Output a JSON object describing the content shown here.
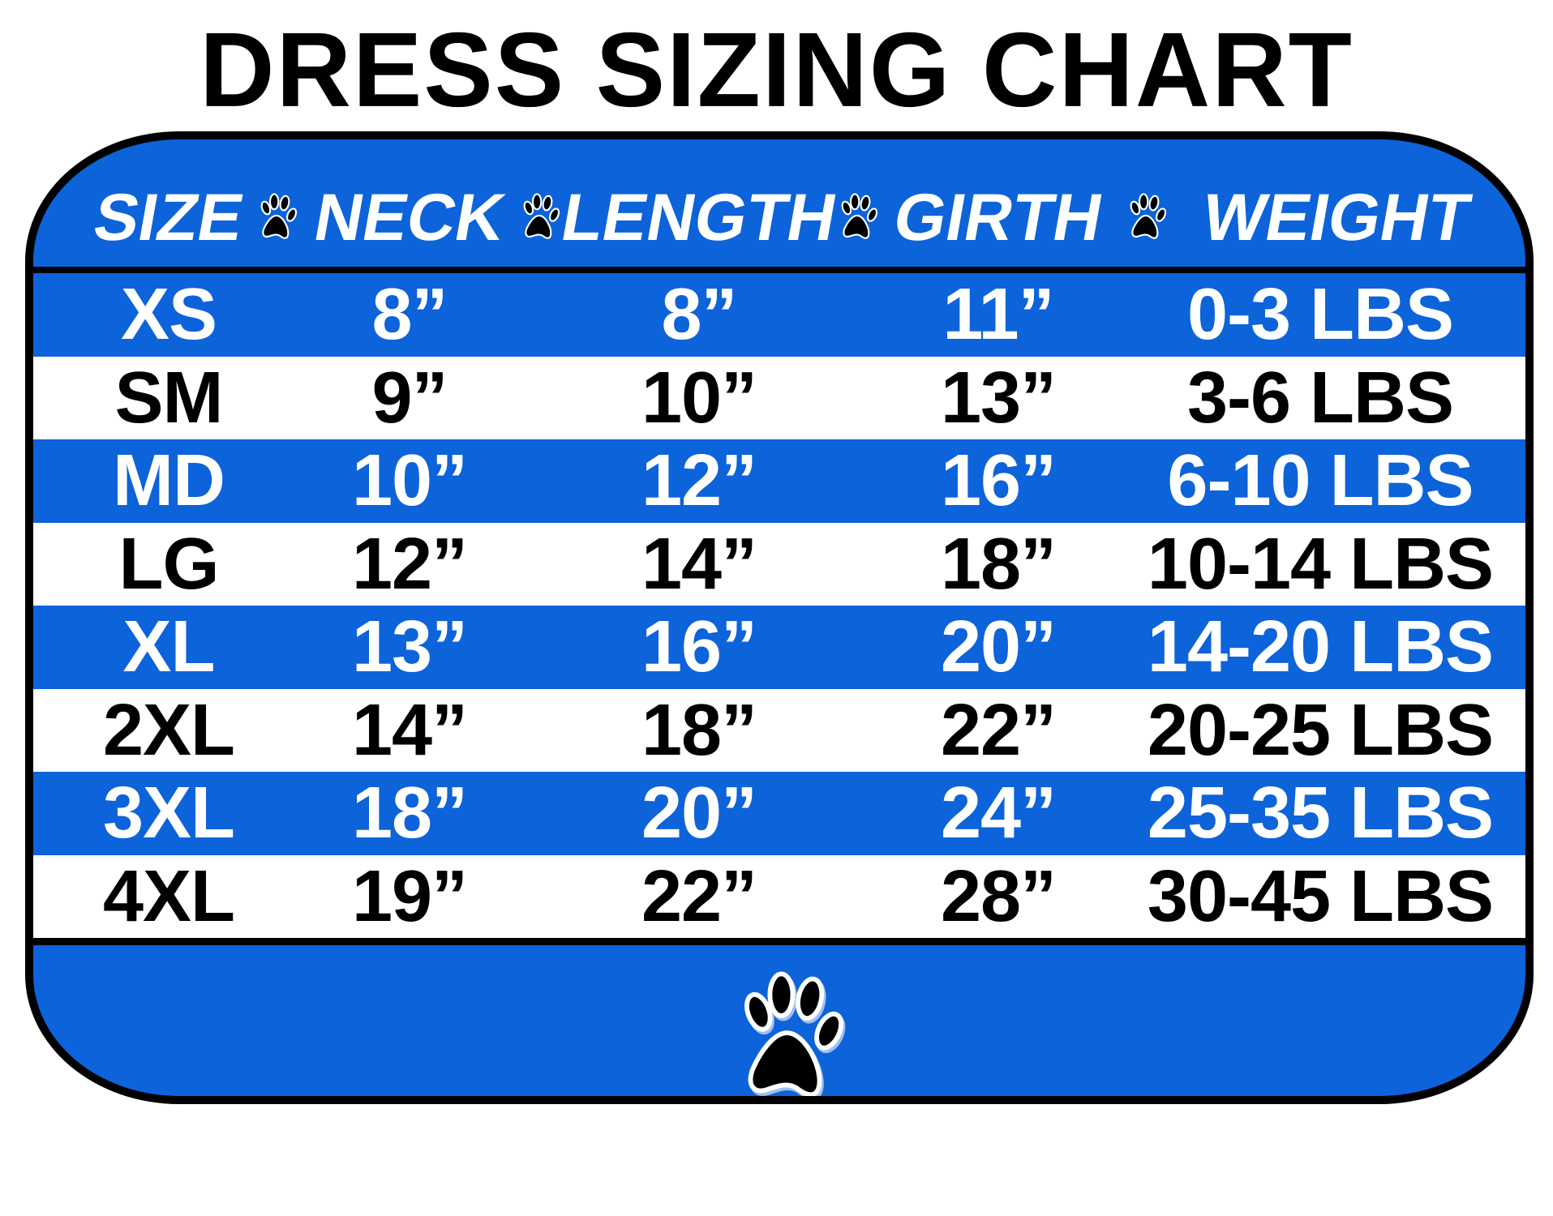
{
  "chart_data": {
    "type": "table",
    "title": "DRESS SIZING CHART",
    "columns": [
      "SIZE",
      "NECK",
      "LENGTH",
      "GIRTH",
      "WEIGHT"
    ],
    "rows": [
      [
        "XS",
        "8”",
        "8”",
        "11”",
        "0-3 LBS"
      ],
      [
        "SM",
        "9”",
        "10”",
        "13”",
        "3-6 LBS"
      ],
      [
        "MD",
        "10”",
        "12”",
        "16”",
        "6-10 LBS"
      ],
      [
        "LG",
        "12”",
        "14”",
        "18”",
        "10-14 LBS"
      ],
      [
        "XL",
        "13”",
        "16”",
        "20”",
        "14-20 LBS"
      ],
      [
        "2XL",
        "14”",
        "18”",
        "22”",
        "20-25 LBS"
      ],
      [
        "3XL",
        "18”",
        "20”",
        "24”",
        "25-35 LBS"
      ],
      [
        "4XL",
        "19”",
        "22”",
        "28”",
        "30-45 LBS"
      ]
    ],
    "row_colors": [
      "blue",
      "white",
      "blue",
      "white",
      "blue",
      "white",
      "blue",
      "white"
    ]
  },
  "colors": {
    "accent_blue": "#0d63d9",
    "border": "#000000",
    "text_on_blue": "#ffffff",
    "text_on_white": "#000000"
  },
  "icons": {
    "header_separator": "paw-print-icon",
    "footer": "paw-print-icon"
  }
}
